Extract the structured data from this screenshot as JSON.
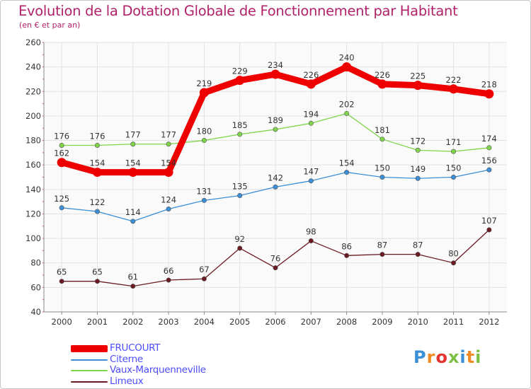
{
  "title": "Evolution de la Dotation Globale de Fonctionnement par Habitant",
  "subtitle": "(en € et par an)",
  "logo": {
    "text": "Proxiti",
    "colors": [
      "#3a8fd6",
      "#f08a24",
      "#e3342f",
      "#7bc043",
      "#3a8fd6",
      "#f08a24",
      "#7bc043"
    ]
  },
  "chart_data": {
    "type": "line",
    "title": "Evolution de la Dotation Globale de Fonctionnement par Habitant",
    "ylabel": "(en € et par an)",
    "xlabel": "",
    "x": [
      "2000",
      "2001",
      "2002",
      "2003",
      "2004",
      "2005",
      "2006",
      "2007",
      "2008",
      "2009",
      "2010",
      "2011",
      "2012"
    ],
    "ylim": [
      40,
      260
    ],
    "yticks": [
      40,
      60,
      80,
      100,
      120,
      140,
      160,
      180,
      200,
      220,
      240,
      260
    ],
    "grid": true,
    "legend_position": "bottom-left",
    "series": [
      {
        "name": "FRUCOURT",
        "color": "#ee0000",
        "values": [
          162,
          154,
          154,
          154,
          219,
          229,
          234,
          226,
          240,
          226,
          225,
          222,
          218
        ]
      },
      {
        "name": "Citerne",
        "color": "#3a8fd6",
        "values": [
          125,
          122,
          114,
          124,
          131,
          135,
          142,
          147,
          154,
          150,
          149,
          150,
          156
        ]
      },
      {
        "name": "Vaux-Marquenneville",
        "color": "#7fd44a",
        "values": [
          176,
          176,
          177,
          177,
          180,
          185,
          189,
          194,
          202,
          181,
          172,
          171,
          174
        ]
      },
      {
        "name": "Limeux",
        "color": "#6b1a22",
        "values": [
          65,
          65,
          61,
          66,
          67,
          92,
          76,
          98,
          86,
          87,
          87,
          80,
          107
        ]
      }
    ]
  }
}
